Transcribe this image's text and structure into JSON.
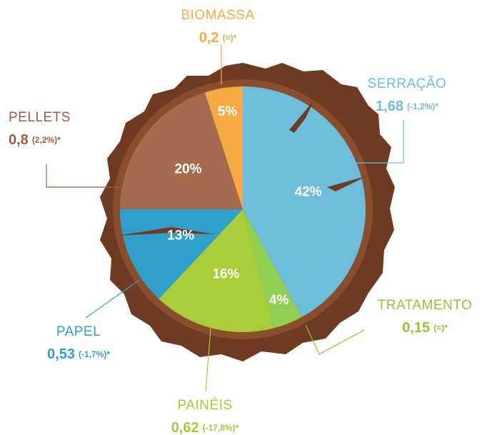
{
  "chart_data": {
    "type": "pie",
    "categories": [
      "SERRAÇÃO",
      "TRATAMENTO",
      "PAINÉIS",
      "PAPEL",
      "PELLETS",
      "BIOMASSA"
    ],
    "values": [
      42,
      4,
      16,
      13,
      20,
      5
    ],
    "value_labels": [
      "42%",
      "4%",
      "16%",
      "13%",
      "20%",
      "5%"
    ],
    "colors": [
      "#6dbddb",
      "#8fcf52",
      "#a9cd38",
      "#2f9fcc",
      "#a66a4e",
      "#f6aa42"
    ],
    "label_colors": [
      "#6dbddb",
      "#8dc63f",
      "#a8c93a",
      "#2f9fcc",
      "#9a5e45",
      "#f6aa42"
    ],
    "amounts": [
      1.68,
      0.15,
      0.62,
      0.53,
      0.8,
      0.2
    ],
    "amount_labels": [
      "1,68",
      "0,15",
      "0,62",
      "0,53",
      "0,8",
      "0,2"
    ],
    "change_labels": [
      "(-1,2%)*",
      "(=)*",
      "(-17,8%)*",
      "(-1,7%)*",
      "(2,2%)*",
      "(=)*"
    ]
  }
}
